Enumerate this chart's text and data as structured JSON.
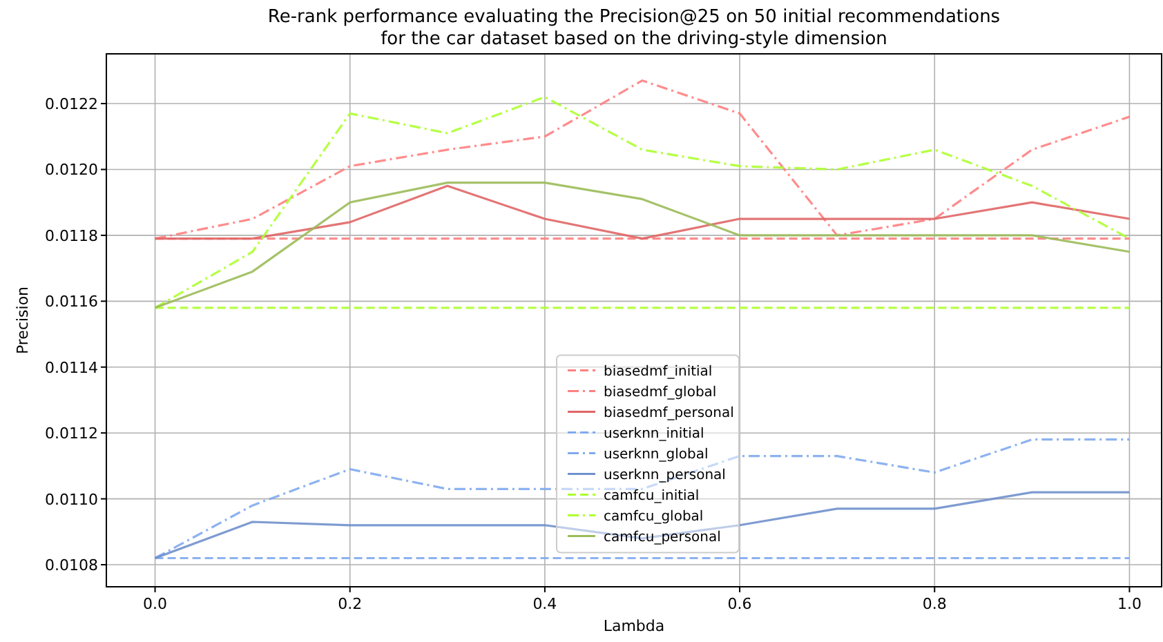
{
  "chart_data": {
    "type": "line",
    "title": "Re-rank performance evaluating the Precision@25 on 50 initial recommendations\nfor the car dataset based on the driving-style dimension",
    "xlabel": "Lambda",
    "ylabel": "Precision",
    "x": [
      0,
      0.1,
      0.2,
      0.3,
      0.4,
      0.5,
      0.6,
      0.7,
      0.8,
      0.9,
      1.0
    ],
    "xlim": [
      -0.05,
      1.033
    ],
    "xticks": [
      {
        "value": 0,
        "label": "0.0"
      },
      {
        "value": 0.2,
        "label": "0.2"
      },
      {
        "value": 0.4,
        "label": "0.4"
      },
      {
        "value": 0.6,
        "label": "0.6"
      },
      {
        "value": 0.8,
        "label": "0.8"
      },
      {
        "value": 1,
        "label": "1.0"
      }
    ],
    "ylim": [
      0.010733,
      0.012351
    ],
    "yticks": [
      {
        "value": 0.0108,
        "label": "0.0108"
      },
      {
        "value": 0.011,
        "label": "0.0110"
      },
      {
        "value": 0.0112,
        "label": "0.0112"
      },
      {
        "value": 0.0114,
        "label": "0.0114"
      },
      {
        "value": 0.0116,
        "label": "0.0116"
      },
      {
        "value": 0.0118,
        "label": "0.0118"
      },
      {
        "value": 0.012,
        "label": "0.0120"
      },
      {
        "value": 0.0122,
        "label": "0.0122"
      }
    ],
    "grid": true,
    "legend": "bottom",
    "series": [
      {
        "name": "biasedmf_initial",
        "color": "#ff8080",
        "line_style": "dashed",
        "values": [
          0.01179,
          0.01179,
          0.01179,
          0.01179,
          0.01179,
          0.01179,
          0.01179,
          0.01179,
          0.01179,
          0.01179,
          0.01179
        ]
      },
      {
        "name": "biasedmf_global",
        "color": "#ff8080",
        "line_style": "dashdot",
        "values": [
          0.01179,
          0.01185,
          0.01201,
          0.01206,
          0.0121,
          0.01227,
          0.01217,
          0.0118,
          0.01185,
          0.01206,
          0.01216
        ]
      },
      {
        "name": "biasedmf_personal",
        "color": "#e06666",
        "line_style": "solid",
        "values": [
          0.01179,
          0.01179,
          0.01184,
          0.01195,
          0.01185,
          0.01179,
          0.01185,
          0.01185,
          0.01185,
          0.0119,
          0.01185
        ]
      },
      {
        "name": "userknn_initial",
        "color": "#80aaee",
        "line_style": "dashed",
        "values": [
          0.01082,
          0.01082,
          0.01082,
          0.01082,
          0.01082,
          0.01082,
          0.01082,
          0.01082,
          0.01082,
          0.01082,
          0.01082
        ]
      },
      {
        "name": "userknn_global",
        "color": "#80aaee",
        "line_style": "dashdot",
        "values": [
          0.01082,
          0.01098,
          0.01109,
          0.01103,
          0.01103,
          0.01103,
          0.01113,
          0.01113,
          0.01108,
          0.01118,
          0.01118
        ]
      },
      {
        "name": "userknn_personal",
        "color": "#7090cc",
        "line_style": "solid",
        "values": [
          0.01082,
          0.01093,
          0.01092,
          0.01092,
          0.01092,
          0.01088,
          0.01092,
          0.01097,
          0.01097,
          0.01102,
          0.01102
        ]
      },
      {
        "name": "camfcu_initial",
        "color": "#adff2f",
        "line_style": "dashed",
        "values": [
          0.01158,
          0.01158,
          0.01158,
          0.01158,
          0.01158,
          0.01158,
          0.01158,
          0.01158,
          0.01158,
          0.01158,
          0.01158
        ]
      },
      {
        "name": "camfcu_global",
        "color": "#adff2f",
        "line_style": "dashdot",
        "values": [
          0.01158,
          0.01175,
          0.01217,
          0.01211,
          0.01222,
          0.01206,
          0.01201,
          0.012,
          0.01206,
          0.01195,
          0.01179
        ]
      },
      {
        "name": "camfcu_personal",
        "color": "#9bbb59",
        "line_style": "solid",
        "values": [
          0.01158,
          0.01169,
          0.0119,
          0.01196,
          0.01196,
          0.01191,
          0.0118,
          0.0118,
          0.0118,
          0.0118,
          0.01175
        ]
      }
    ]
  }
}
